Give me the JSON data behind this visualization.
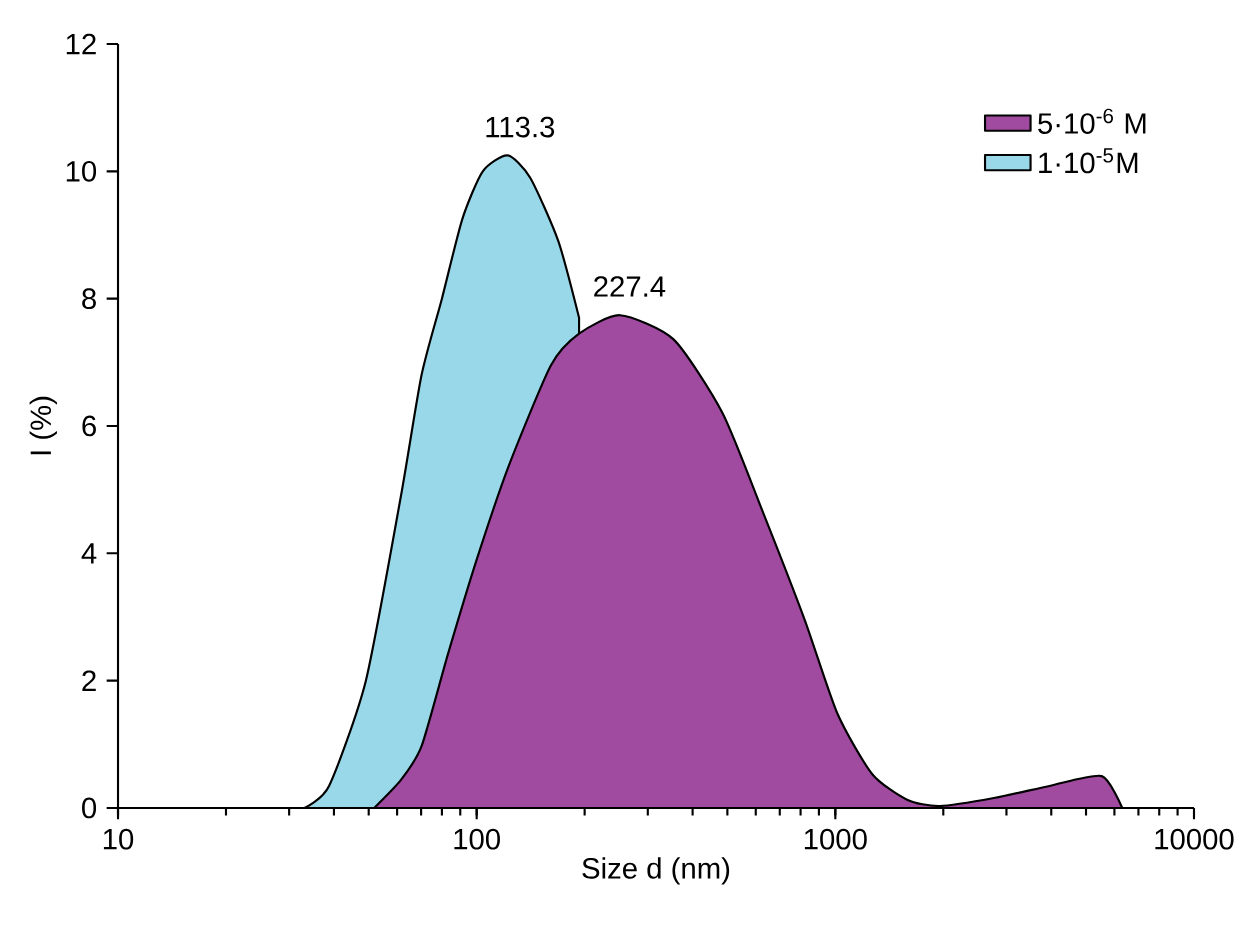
{
  "chart_data": {
    "type": "area",
    "xlabel": "Size d (nm)",
    "ylabel": "I (%)",
    "log": "x",
    "xlim": [
      10,
      10000
    ],
    "xticks": [
      10,
      100,
      1000,
      10000
    ],
    "ylim": [
      0,
      12
    ],
    "yticks": [
      0,
      2,
      4,
      6,
      8,
      10,
      12
    ],
    "legend": "top right",
    "grid": false,
    "series": [
      {
        "name": "5·10$^{-6}$ M",
        "color": "#a04aa0",
        "x": [
          51.8,
          61.5,
          70.2,
          83.2,
          100,
          123,
          161,
          193,
          251,
          354,
          485,
          631,
          821,
          1014,
          1268,
          1585,
          1954,
          2790,
          3981,
          5534,
          6310
        ],
        "values": [
          0,
          0.44,
          0.97,
          2.42,
          3.9,
          5.38,
          6.95,
          7.45,
          7.74,
          7.36,
          6.2,
          4.62,
          2.96,
          1.48,
          0.53,
          0.13,
          0.03,
          0.16,
          0.35,
          0.5,
          0
        ]
      },
      {
        "name": "1·10$^{-5}$M",
        "color": "#99d8e8",
        "x": [
          33.1,
          38.8,
          49.1,
          61.5,
          70.2,
          80.0,
          91.2,
          104,
          122,
          141,
          169,
          193
        ],
        "values": [
          0,
          0.35,
          2.0,
          4.9,
          6.8,
          8.0,
          9.25,
          10.0,
          10.25,
          9.9,
          8.9,
          7.7
        ]
      }
    ],
    "annotations": [
      {
        "text": "113.3",
        "x": 113.3,
        "y": 10.3
      },
      {
        "text": "227.4",
        "x": 227.4,
        "y": 7.8
      }
    ]
  }
}
